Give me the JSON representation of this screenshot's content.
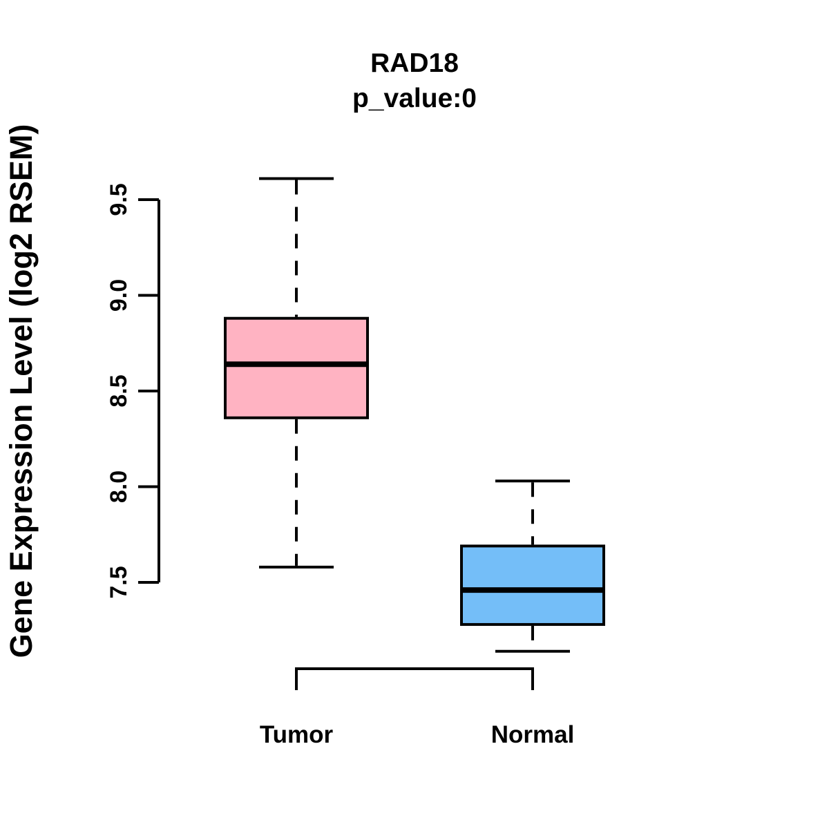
{
  "title": "RAD18",
  "subtitle": "p_value:0",
  "y_axis": {
    "label": "Gene Expression Level (log2 RSEM)",
    "tick_labels": [
      "7.5",
      "8.0",
      "8.5",
      "9.0",
      "9.5"
    ],
    "tick_values": [
      7.5,
      8.0,
      8.5,
      9.0,
      9.5
    ],
    "range": [
      7.5,
      9.5
    ]
  },
  "x_axis": {
    "categories": [
      "Tumor",
      "Normal"
    ]
  },
  "colors": {
    "tumor_fill": "#FFB3C2",
    "normal_fill": "#74BEF8",
    "line": "#000000",
    "background": "#FFFFFF"
  },
  "chart_data": {
    "type": "boxplot",
    "title": "RAD18",
    "subtitle": "p_value:0",
    "xlabel": "",
    "ylabel": "Gene Expression Level (log2 RSEM)",
    "categories": [
      "Tumor",
      "Normal"
    ],
    "series": [
      {
        "name": "Tumor",
        "color": "#FFB3C2",
        "whisker_low": 7.58,
        "q1": 8.36,
        "median": 8.64,
        "q3": 8.88,
        "whisker_high": 9.61
      },
      {
        "name": "Normal",
        "color": "#74BEF8",
        "whisker_low": 7.14,
        "q1": 7.28,
        "median": 7.46,
        "q3": 7.69,
        "whisker_high": 8.03
      }
    ],
    "ylim": [
      7.5,
      9.5
    ],
    "yticks": [
      7.5,
      8.0,
      8.5,
      9.0,
      9.5
    ],
    "grid": false,
    "legend_position": "none",
    "whisker_style": "dashed",
    "median_style": "thick-solid"
  }
}
